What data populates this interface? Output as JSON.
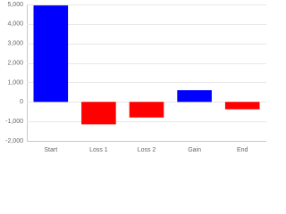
{
  "chart_data": {
    "type": "bar",
    "categories": [
      "Start",
      "Loss 1",
      "Loss 2",
      "Gain",
      "End"
    ],
    "values": [
      4950,
      -1150,
      -800,
      600,
      -380
    ],
    "colors": [
      "#0000ff",
      "#ff0000",
      "#ff0000",
      "#0000ff",
      "#ff0000"
    ],
    "ylim": [
      -2000,
      5000
    ],
    "yticks": [
      {
        "value": 5000,
        "label": "5,000"
      },
      {
        "value": 4000,
        "label": "4,000"
      },
      {
        "value": 3000,
        "label": "3,000"
      },
      {
        "value": 2000,
        "label": "2,000"
      },
      {
        "value": 1000,
        "label": "1,000"
      },
      0,
      {
        "value": -1000,
        "label": "-1,000"
      },
      {
        "value": -2000,
        "label": "-2,000"
      }
    ],
    "grid": true
  }
}
